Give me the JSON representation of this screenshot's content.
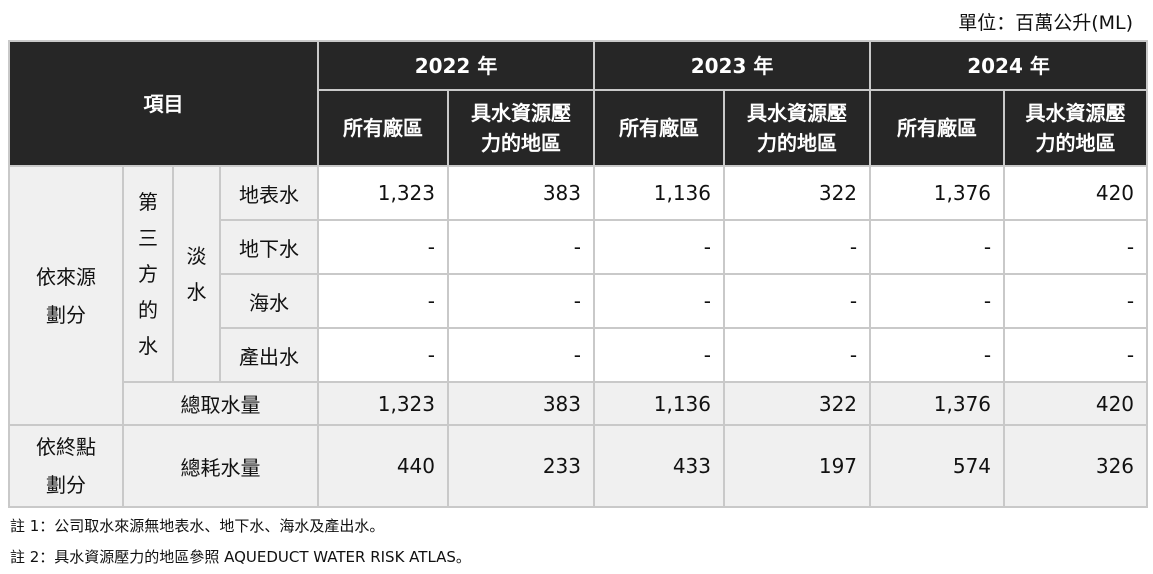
{
  "unit_label": "單位：百萬公升(ML)",
  "header": {
    "item_label": "項目",
    "years": [
      "2022 年",
      "2023 年",
      "2024 年"
    ],
    "all_sites": "所有廠區",
    "stress_line1": "具水資源壓",
    "stress_line2": "力的地區"
  },
  "rows": {
    "by_source_line1": "依來源",
    "by_source_line2": "劃分",
    "third_party_chars": [
      "第",
      "三",
      "方",
      "的",
      "水"
    ],
    "freshwater_chars": [
      "淡",
      "水"
    ],
    "sources": [
      {
        "label": "地表水",
        "values": [
          "1,323",
          "383",
          "1,136",
          "322",
          "1,376",
          "420"
        ]
      },
      {
        "label": "地下水",
        "values": [
          "-",
          "-",
          "-",
          "-",
          "-",
          "-"
        ]
      },
      {
        "label": "海水",
        "values": [
          "-",
          "-",
          "-",
          "-",
          "-",
          "-"
        ]
      },
      {
        "label": "產出水",
        "values": [
          "-",
          "-",
          "-",
          "-",
          "-",
          "-"
        ]
      }
    ],
    "total_withdrawal": {
      "label": "總取水量",
      "values": [
        "1,323",
        "383",
        "1,136",
        "322",
        "1,376",
        "420"
      ]
    },
    "by_endpoint_line1": "依終點",
    "by_endpoint_line2": "劃分",
    "total_consumption": {
      "label": "總耗水量",
      "values": [
        "440",
        "233",
        "433",
        "197",
        "574",
        "326"
      ]
    }
  },
  "notes": [
    "註 1：公司取水來源無地表水、地下水、海水及產出水。",
    "註 2：具水資源壓力的地區參照 AQUEDUCT WATER RISK ATLAS。"
  ]
}
